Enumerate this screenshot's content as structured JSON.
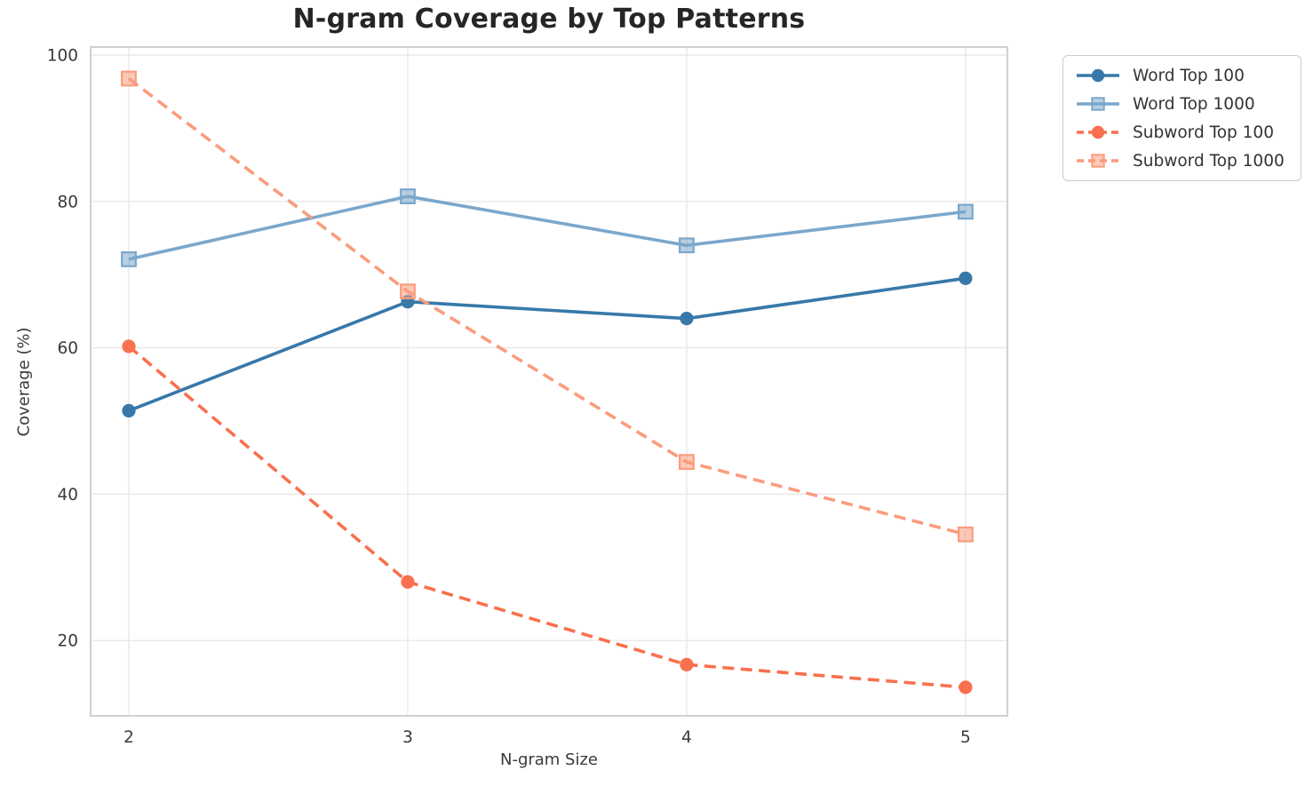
{
  "chart_data": {
    "type": "line",
    "title": "N-gram Coverage by Top Patterns",
    "xlabel": "N-gram Size",
    "ylabel": "Coverage (%)",
    "x": [
      2,
      3,
      4,
      5
    ],
    "xticks": [
      "2",
      "3",
      "4",
      "5"
    ],
    "yticks": [
      20,
      40,
      60,
      80,
      100
    ],
    "xlim": [
      1.863,
      5.15
    ],
    "ylim": [
      9.7,
      101.1
    ],
    "grid": true,
    "legend_position": "outside-top-right",
    "colors": {
      "word_top_100": "#3778A9",
      "word_top_1000": "#7BA7CB",
      "subword_top_100": "#F9704E",
      "subword_top_1000": "#FA9C7D",
      "gridline": "#e8e8e8",
      "spine": "#cccccc",
      "tick_text": "#3a3a3a",
      "title_text": "#262626"
    },
    "series": [
      {
        "name": "Word Top 100",
        "values": [
          51.4,
          66.3,
          64.0,
          69.5
        ],
        "color": "#3778A9",
        "marker": "circle",
        "line_style": "solid"
      },
      {
        "name": "Word Top 1000",
        "values": [
          72.1,
          80.7,
          74.0,
          78.6
        ],
        "color": "#7BA7CB",
        "marker": "square",
        "line_style": "solid"
      },
      {
        "name": "Subword Top 100",
        "values": [
          60.2,
          28.0,
          16.7,
          13.6
        ],
        "color": "#F9704E",
        "marker": "circle",
        "line_style": "dashed"
      },
      {
        "name": "Subword Top 1000",
        "values": [
          96.8,
          67.7,
          44.4,
          34.5
        ],
        "color": "#FA9C7D",
        "marker": "square",
        "line_style": "dashed"
      }
    ]
  }
}
